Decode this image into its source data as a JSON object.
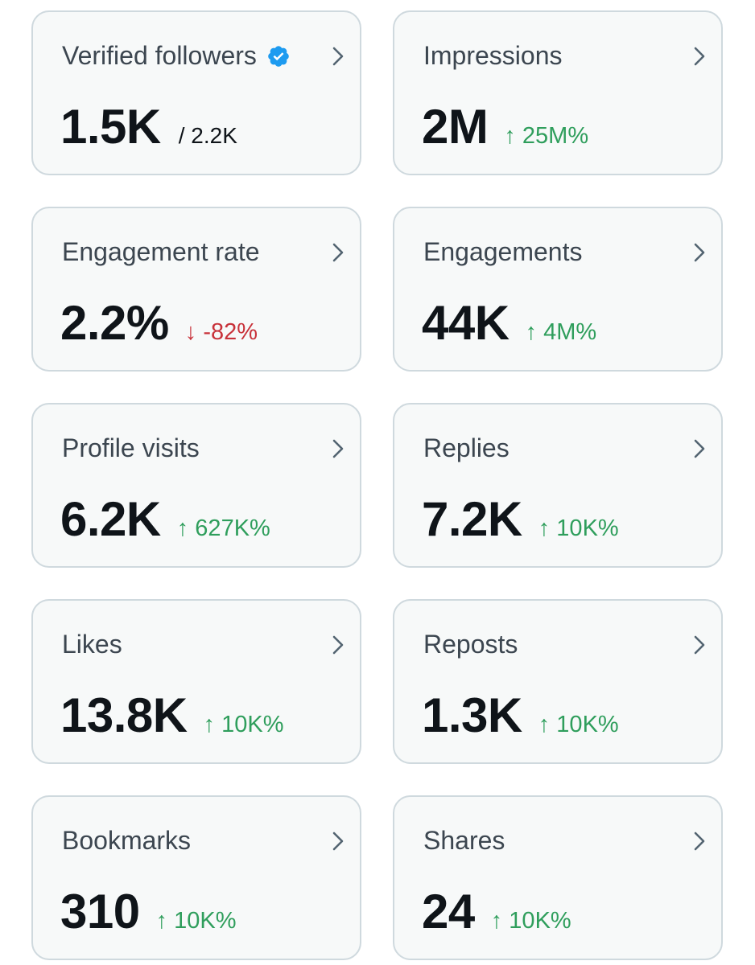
{
  "colors": {
    "up": "#2f9e5c",
    "down": "#c8323a",
    "verified": "#1d9bf0"
  },
  "cards": [
    {
      "label": "Verified followers",
      "value": "1.5K",
      "sub": "/ 2.2K",
      "icon": "verified-badge-icon"
    },
    {
      "label": "Impressions",
      "value": "2M",
      "change": "↑ 25M%",
      "direction": "up"
    },
    {
      "label": "Engagement rate",
      "value": "2.2%",
      "change": "↓ -82%",
      "direction": "down"
    },
    {
      "label": "Engagements",
      "value": "44K",
      "change": "↑ 4M%",
      "direction": "up"
    },
    {
      "label": "Profile visits",
      "value": "6.2K",
      "change": "↑ 627K%",
      "direction": "up"
    },
    {
      "label": "Replies",
      "value": "7.2K",
      "change": "↑ 10K%",
      "direction": "up"
    },
    {
      "label": "Likes",
      "value": "13.8K",
      "change": "↑ 10K%",
      "direction": "up"
    },
    {
      "label": "Reposts",
      "value": "1.3K",
      "change": "↑ 10K%",
      "direction": "up"
    },
    {
      "label": "Bookmarks",
      "value": "310",
      "change": "↑ 10K%",
      "direction": "up"
    },
    {
      "label": "Shares",
      "value": "24",
      "change": "↑ 10K%",
      "direction": "up"
    }
  ]
}
